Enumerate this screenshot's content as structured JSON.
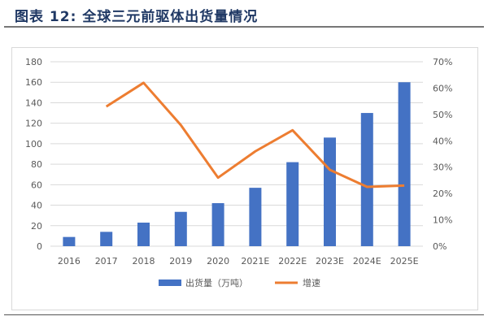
{
  "title": "图表 12: 全球三元前驱体出货量情况",
  "chart_data": {
    "type": "bar+line",
    "categories": [
      "2016",
      "2017",
      "2018",
      "2019",
      "2020",
      "2021E",
      "2022E",
      "2023E",
      "2024E",
      "2025E"
    ],
    "series": [
      {
        "name": "出货量（万吨）",
        "type": "bar",
        "axis": "left",
        "color": "#4472c4",
        "values": [
          9,
          14,
          23,
          33.5,
          42,
          57,
          82,
          106,
          130,
          160
        ]
      },
      {
        "name": "增速",
        "type": "line",
        "axis": "right",
        "color": "#ed7d31",
        "values": [
          null,
          53,
          62,
          46,
          26,
          36,
          44,
          29,
          22.5,
          23
        ]
      }
    ],
    "ylim": [
      0,
      180
    ],
    "yticks": [
      "0",
      "20",
      "40",
      "60",
      "80",
      "100",
      "120",
      "140",
      "160",
      "180"
    ],
    "y2lim": [
      0,
      70
    ],
    "y2ticks": [
      "0%",
      "10%",
      "20%",
      "30%",
      "40%",
      "50%",
      "60%",
      "70%"
    ],
    "grid": true,
    "legend": "bottom"
  }
}
